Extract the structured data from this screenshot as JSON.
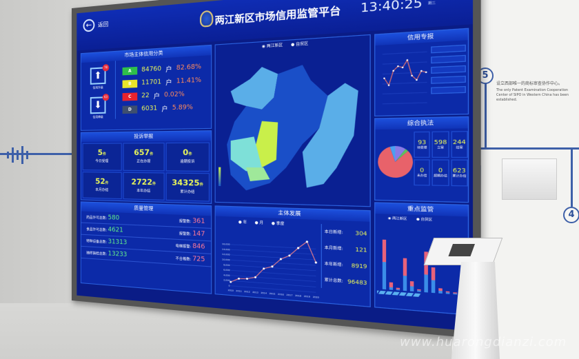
{
  "header": {
    "back_label": "返回",
    "title": "两江新区市场信用监管平台",
    "clock": "13:40:25",
    "date": "2020年01月08日 星期三",
    "region_options": [
      "两江新区",
      "自贸区"
    ]
  },
  "credit": {
    "title": "市场主体信用分类",
    "upgrade_label": "信用升级",
    "upgrade_count": "78",
    "downgrade_label": "信用降级",
    "downgrade_count": "63",
    "grades": [
      {
        "grade": "A",
        "count": "84760",
        "unit": "户",
        "pct": "82.68%",
        "color": "#2fbf4a"
      },
      {
        "grade": "B",
        "count": "11701",
        "unit": "户",
        "pct": "11.41%",
        "color": "#e9e52a"
      },
      {
        "grade": "C",
        "count": "22",
        "unit": "户",
        "pct": "0.02%",
        "color": "#e8232e"
      },
      {
        "grade": "D",
        "count": "6031",
        "unit": "户",
        "pct": "5.89%",
        "color": "#3e4f6e"
      }
    ]
  },
  "complaints": {
    "title": "投诉举报",
    "unit": "件",
    "items": [
      {
        "value": "5",
        "label": "今日受理"
      },
      {
        "value": "657",
        "label": "正在办理"
      },
      {
        "value": "0",
        "label": "逾期投诉"
      },
      {
        "value": "52",
        "label": "本月办结"
      },
      {
        "value": "2722",
        "label": "本年办结"
      },
      {
        "value": "34325",
        "label": "累计办结"
      }
    ]
  },
  "quality": {
    "title": "质量管理",
    "left": [
      {
        "label": "药品许可总数:",
        "value": "580"
      },
      {
        "label": "食品许可总数:",
        "value": "4621"
      },
      {
        "label": "特种设备总数:",
        "value": "31313"
      },
      {
        "label": "抽样抽检总数:",
        "value": "13233"
      }
    ],
    "right": [
      {
        "label": "报警数:",
        "value": "361"
      },
      {
        "label": "报警数:",
        "value": "147"
      },
      {
        "label": "电梯报警:",
        "value": "846"
      },
      {
        "label": "不合格数:",
        "value": "725"
      }
    ]
  },
  "development": {
    "title": "主体发展",
    "tabs": [
      "年",
      "月",
      "季度"
    ],
    "stats": [
      {
        "label": "本日新增:",
        "value": "304"
      },
      {
        "label": "本月新增:",
        "value": "121"
      },
      {
        "label": "本年新增:",
        "value": "8919"
      },
      {
        "label": "累计总数:",
        "value": "96483"
      }
    ],
    "chart_data": {
      "type": "line",
      "x": [
        "2010",
        "2011",
        "2012",
        "2013",
        "2014",
        "2015",
        "2016",
        "2017",
        "2018",
        "2019",
        "2020"
      ],
      "values": [
        1500,
        3000,
        3200,
        4000,
        7500,
        8500,
        11500,
        13000,
        16000,
        18500,
        11000
      ],
      "ylim": [
        0,
        20000
      ],
      "yticks": [
        "0",
        "2,000",
        "4,000",
        "6,000",
        "8,000",
        "10,000",
        "12,000",
        "14,000",
        "16,000"
      ],
      "color": "#e07a8a"
    }
  },
  "map": {
    "regions_color_low": "#1a58c8",
    "regions_color_high": "#c9ef4a"
  },
  "right1": {
    "title": "信用专报",
    "chart_data": {
      "type": "line",
      "values": [
        1800,
        1300,
        2300,
        2600,
        2500,
        3000,
        1900,
        1600,
        2200,
        2100
      ],
      "color": "#d16a72"
    }
  },
  "right2": {
    "title": "综合执法",
    "pie": [
      {
        "value": 10,
        "color": "#8a7ae6"
      },
      {
        "value": 3,
        "color": "#5ec25a"
      },
      {
        "value": 82,
        "color": "#e8626a"
      },
      {
        "value": 5,
        "color": "#4ba0f0"
      }
    ],
    "stats": [
      {
        "value": "93",
        "label": "待受理"
      },
      {
        "value": "598",
        "label": "立案"
      },
      {
        "value": "244",
        "label": "结案"
      },
      {
        "value": "0",
        "label": "未办结"
      },
      {
        "value": "0",
        "label": "超期办结"
      },
      {
        "value": "623",
        "label": "累计办结"
      }
    ]
  },
  "right3": {
    "title": "重点监管",
    "legend": [
      "两江新区",
      "自贸区"
    ],
    "chart_data": {
      "type": "bar",
      "series": [
        {
          "color": "#3b8de8",
          "values": [
            55,
            5,
            2,
            30,
            10,
            3,
            35,
            25,
            5,
            3,
            2,
            5
          ]
        },
        {
          "color": "#e8627a",
          "values": [
            45,
            10,
            3,
            35,
            10,
            2,
            45,
            25,
            5,
            2,
            2,
            5
          ]
        }
      ]
    }
  },
  "wall": {
    "step5": "5",
    "step4": "4",
    "caption_cn": "设立西部唯一的商标审查协作中心。",
    "caption_en": "The only Patent Examination Cooperation Center of SIPO in Western China has been established."
  },
  "watermark": "www.huarongdianzi.com"
}
